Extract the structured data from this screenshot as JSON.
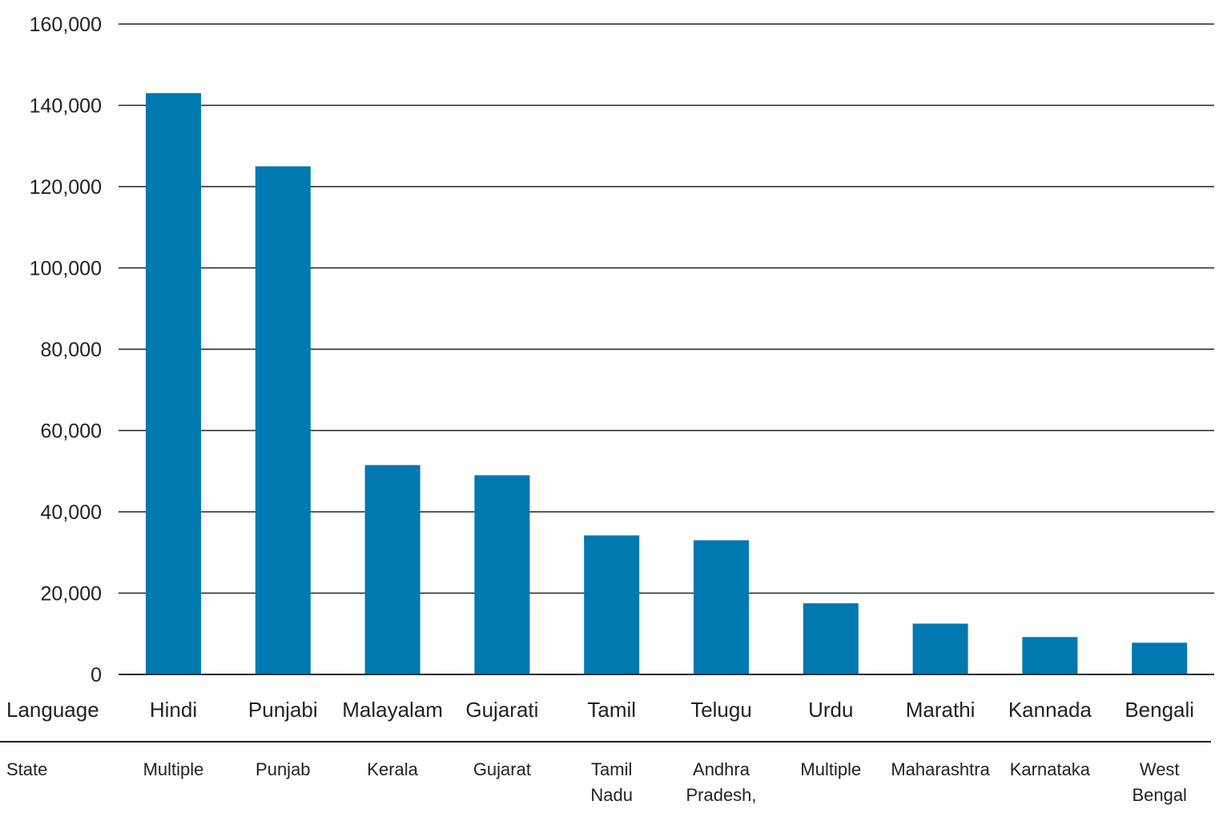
{
  "chart_data": {
    "type": "bar",
    "bar_color": "#0078b0",
    "grid": true,
    "ylim": [
      0,
      160000
    ],
    "yticks": [
      0,
      20000,
      40000,
      60000,
      80000,
      100000,
      120000,
      140000,
      160000
    ],
    "ytick_labels": [
      "0",
      "20,000",
      "40,000",
      "60,000",
      "80,000",
      "100,000",
      "120,000",
      "140,000",
      "160,000"
    ],
    "row_labels": {
      "language": "Language",
      "state": "State"
    },
    "categories": [
      "Hindi",
      "Punjabi",
      "Malayalam",
      "Gujarati",
      "Tamil",
      "Telugu",
      "Urdu",
      "Marathi",
      "Kannada",
      "Bengali"
    ],
    "states": [
      [
        "Multiple"
      ],
      [
        "Punjab"
      ],
      [
        "Kerala"
      ],
      [
        "Gujarat"
      ],
      [
        "Tamil",
        "Nadu"
      ],
      [
        "Andhra",
        "Pradesh,"
      ],
      [
        "Multiple"
      ],
      [
        "Maharashtra"
      ],
      [
        "Karnataka"
      ],
      [
        "West",
        "Bengal"
      ]
    ],
    "values": [
      143000,
      125000,
      51500,
      49000,
      34200,
      33000,
      17500,
      12500,
      9200,
      7800
    ]
  }
}
